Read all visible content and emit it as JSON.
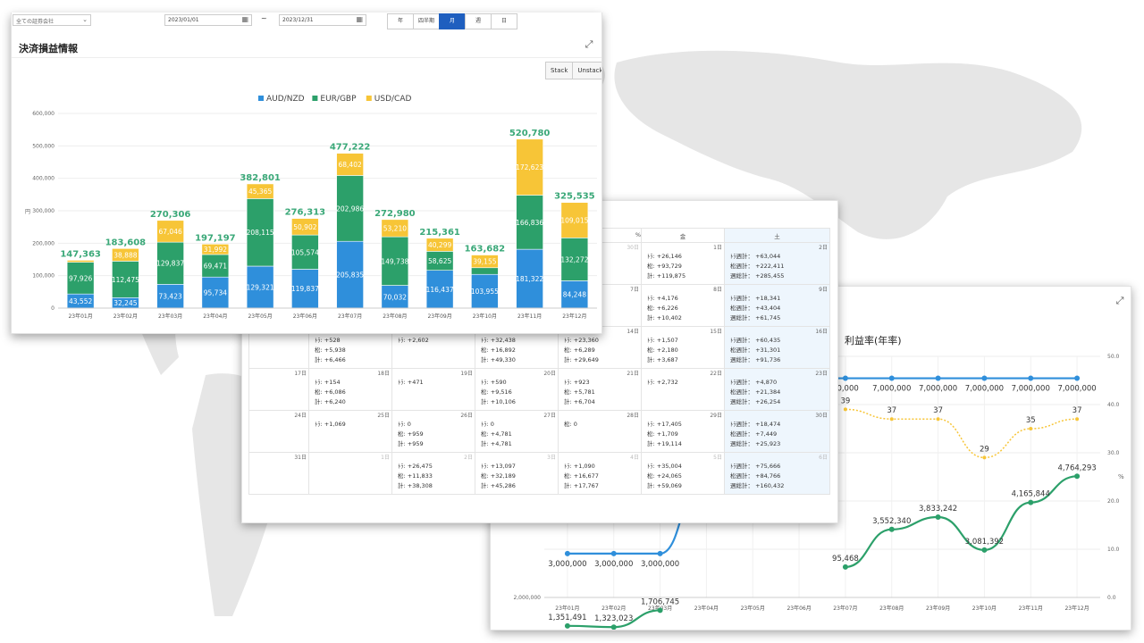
{
  "filters": {
    "company_select": "全ての証券会社",
    "date_from": "2023/01/01",
    "date_to": "2023/12/31",
    "range_sep": "~",
    "periods": [
      "年",
      "四半期",
      "月",
      "週",
      "日"
    ],
    "active_period": "月"
  },
  "pl_panel": {
    "title": "決済損益情報",
    "stack_label": "Stack",
    "unstack_label": "Unstack",
    "y_unit": "円",
    "chart_data": {
      "type": "bar",
      "stacked": true,
      "categories": [
        "23年01月",
        "23年02月",
        "23年03月",
        "23年04月",
        "23年05月",
        "23年06月",
        "23年07月",
        "23年08月",
        "23年09月",
        "23年10月",
        "23年11月",
        "23年12月"
      ],
      "series": [
        {
          "name": "AUD/NZD",
          "color": "#2f8fdb",
          "values": [
            43552,
            32245,
            73423,
            95734,
            129321,
            119837,
            205835,
            70032,
            116437,
            103955,
            181322,
            84248
          ]
        },
        {
          "name": "EUR/GBP",
          "color": "#2ca06a",
          "values": [
            97926,
            112475,
            129837,
            69471,
            208115,
            105574,
            202986,
            149738,
            58625,
            20572,
            166836,
            132272
          ]
        },
        {
          "name": "USD/CAD",
          "color": "#f7c537",
          "values": [
            5885,
            38888,
            67046,
            31992,
            45365,
            50902,
            68402,
            53210,
            40299,
            39155,
            172623,
            109015
          ]
        }
      ],
      "totals": [
        147363,
        183608,
        270306,
        197197,
        382801,
        276313,
        477222,
        272980,
        215361,
        163682,
        520780,
        325535
      ],
      "ylim": [
        0,
        600000
      ],
      "yticks": [
        "0",
        "100,000",
        "200,000",
        "300,000",
        "400,000",
        "500,000",
        "600,000"
      ],
      "hidden_labels": [
        "5,885",
        "31,992",
        "20,572"
      ],
      "legend": "top-center"
    }
  },
  "calendar_panel": {
    "weekday_headers": [
      "",
      "",
      "",
      "",
      "",
      "金",
      "土"
    ],
    "weekday_partial": "%",
    "rows": [
      [
        {
          "day": "",
          "lines": []
        },
        {
          "day": "",
          "lines": []
        },
        {
          "day": "",
          "lines": []
        },
        {
          "day": "",
          "lines": []
        },
        {
          "day": "30日",
          "gray": true,
          "lines": []
        },
        {
          "day": "1日",
          "lines": [
            "ﾄﾗ: +26,146",
            "松: +93,729",
            "計: +119,875"
          ]
        },
        {
          "day": "2日",
          "lines": [
            "ﾄﾗ週計： +63,044",
            "松週計： +222,411",
            "週総計： +285,455"
          ]
        }
      ],
      [
        {
          "day": "",
          "lines": [
            "計: +2,519"
          ]
        },
        {
          "day": "",
          "lines": [
            "計: +23,159"
          ]
        },
        {
          "day": "",
          "lines": [
            "計: +25,663"
          ]
        },
        {
          "day": "",
          "lines": []
        },
        {
          "day": "7日",
          "lines": []
        },
        {
          "day": "8日",
          "lines": [
            "ﾄﾗ: +4,176",
            "松: +6,226",
            "計: +10,402"
          ]
        },
        {
          "day": "9日",
          "lines": [
            "ﾄﾗ週計： +18,341",
            "松週計： +43,404",
            "週総計： +61,745"
          ]
        }
      ],
      [
        {
          "day": "10日",
          "lines": []
        },
        {
          "day": "11日",
          "lines": [
            "ﾄﾗ: +528",
            "松: +5,938",
            "計: +6,466"
          ]
        },
        {
          "day": "12日",
          "lines": [
            "ﾄﾗ: +2,602"
          ]
        },
        {
          "day": "13日",
          "lines": [
            "ﾄﾗ: +32,438",
            "松: +16,892",
            "計: +49,330"
          ]
        },
        {
          "day": "14日",
          "lines": [
            "ﾄﾗ: +23,360",
            "松: +6,289",
            "計: +29,649"
          ]
        },
        {
          "day": "15日",
          "lines": [
            "ﾄﾗ: +1,507",
            "松: +2,180",
            "計: +3,687"
          ]
        },
        {
          "day": "16日",
          "lines": [
            "ﾄﾗ週計： +60,435",
            "松週計： +31,301",
            "週総計： +91,736"
          ]
        }
      ],
      [
        {
          "day": "17日",
          "lines": []
        },
        {
          "day": "18日",
          "lines": [
            "ﾄﾗ: +154",
            "松: +6,086",
            "計: +6,240"
          ]
        },
        {
          "day": "19日",
          "lines": [
            "ﾄﾗ: +471"
          ]
        },
        {
          "day": "20日",
          "lines": [
            "ﾄﾗ: +590",
            "松: +9,516",
            "計: +10,106"
          ]
        },
        {
          "day": "21日",
          "lines": [
            "ﾄﾗ: +923",
            "松: +5,781",
            "計: +6,704"
          ]
        },
        {
          "day": "22日",
          "lines": [
            "ﾄﾗ: +2,732"
          ]
        },
        {
          "day": "23日",
          "lines": [
            "ﾄﾗ週計： +4,870",
            "松週計： +21,384",
            "週総計： +26,254"
          ]
        }
      ],
      [
        {
          "day": "24日",
          "lines": []
        },
        {
          "day": "25日",
          "lines": [
            "ﾄﾗ: +1,069"
          ]
        },
        {
          "day": "26日",
          "lines": [
            "ﾄﾗ: 0",
            "松: +959",
            "計: +959"
          ]
        },
        {
          "day": "27日",
          "lines": [
            "ﾄﾗ: 0",
            "松: +4,781",
            "計: +4,781"
          ]
        },
        {
          "day": "28日",
          "lines": [
            "松: 0"
          ]
        },
        {
          "day": "29日",
          "lines": [
            "ﾄﾗ: +17,405",
            "松: +1,709",
            "計: +19,114"
          ]
        },
        {
          "day": "30日",
          "lines": [
            "ﾄﾗ週計： +18,474",
            "松週計： +7,449",
            "週総計： +25,923"
          ]
        }
      ],
      [
        {
          "day": "31日",
          "lines": []
        },
        {
          "day": "1日",
          "gray": true,
          "lines": []
        },
        {
          "day": "2日",
          "gray": true,
          "lines": [
            "ﾄﾗ: +26,475",
            "松: +11,833",
            "計: +38,308"
          ]
        },
        {
          "day": "3日",
          "gray": true,
          "lines": [
            "ﾄﾗ: +13,097",
            "松: +32,189",
            "計: +45,286"
          ]
        },
        {
          "day": "4日",
          "gray": true,
          "lines": [
            "ﾄﾗ: +1,090",
            "松: +16,677",
            "計: +17,767"
          ]
        },
        {
          "day": "5日",
          "gray": true,
          "lines": [
            "ﾄﾗ: +35,004",
            "松: +24,065",
            "計: +59,069"
          ]
        },
        {
          "day": "6日",
          "gray": true,
          "lines": [
            "ﾄﾗ週計： +75,666",
            "松週計： +84,766",
            "週総計： +160,432"
          ]
        }
      ]
    ]
  },
  "balance_panel": {
    "title": "利益率(年率)",
    "chart_data": {
      "type": "line",
      "categories": [
        "23年01月",
        "23年02月",
        "23年03月",
        "23年04月",
        "23年05月",
        "23年06月",
        "23年07月",
        "23年08月",
        "23年09月",
        "23年10月",
        "23年11月",
        "23年12月"
      ],
      "series": [
        {
          "color": "#2ca06a",
          "axis": "left",
          "values": [
            1351491,
            1323023,
            1706745,
            null,
            null,
            null,
            2695468,
            3552340,
            3833242,
            3081392,
            4165844,
            4764293
          ],
          "labels": [
            "1,351,491",
            "1,323,023",
            "1,706,745",
            "",
            "",
            "",
            "95,468",
            "3,552,340",
            "3,833,242",
            "3,081,392",
            "4,165,844",
            "4,764,293"
          ]
        },
        {
          "color": "#2f8fdb",
          "axis": "left",
          "values": [
            3000000,
            3000000,
            3000000,
            5000000,
            5000000,
            7000000,
            7000000,
            7000000,
            7000000,
            7000000,
            7000000,
            7000000
          ],
          "labels": [
            "3,000,000",
            "3,000,000",
            "3,000,000",
            "5,000,000",
            "5,000,000",
            "",
            "00,000",
            "7,000,000",
            "7,000,000",
            "7,000,000",
            "7,000,000",
            "7,000,000"
          ]
        },
        {
          "color": "#f7c537",
          "axis": "right",
          "dashed": true,
          "values": [
            null,
            null,
            null,
            null,
            null,
            null,
            39,
            37,
            37,
            29,
            35,
            37
          ],
          "labels": [
            "",
            "",
            "",
            "",
            "",
            "",
            "39",
            "37",
            "37",
            "29",
            "35",
            "37"
          ]
        }
      ],
      "yticks_left": [
        "2,000,000",
        "4,000,000"
      ],
      "yticks_right": [
        "0.0",
        "10.0",
        "20.0",
        "30.0",
        "40.0",
        "50.0"
      ],
      "right_unit": "%"
    }
  }
}
